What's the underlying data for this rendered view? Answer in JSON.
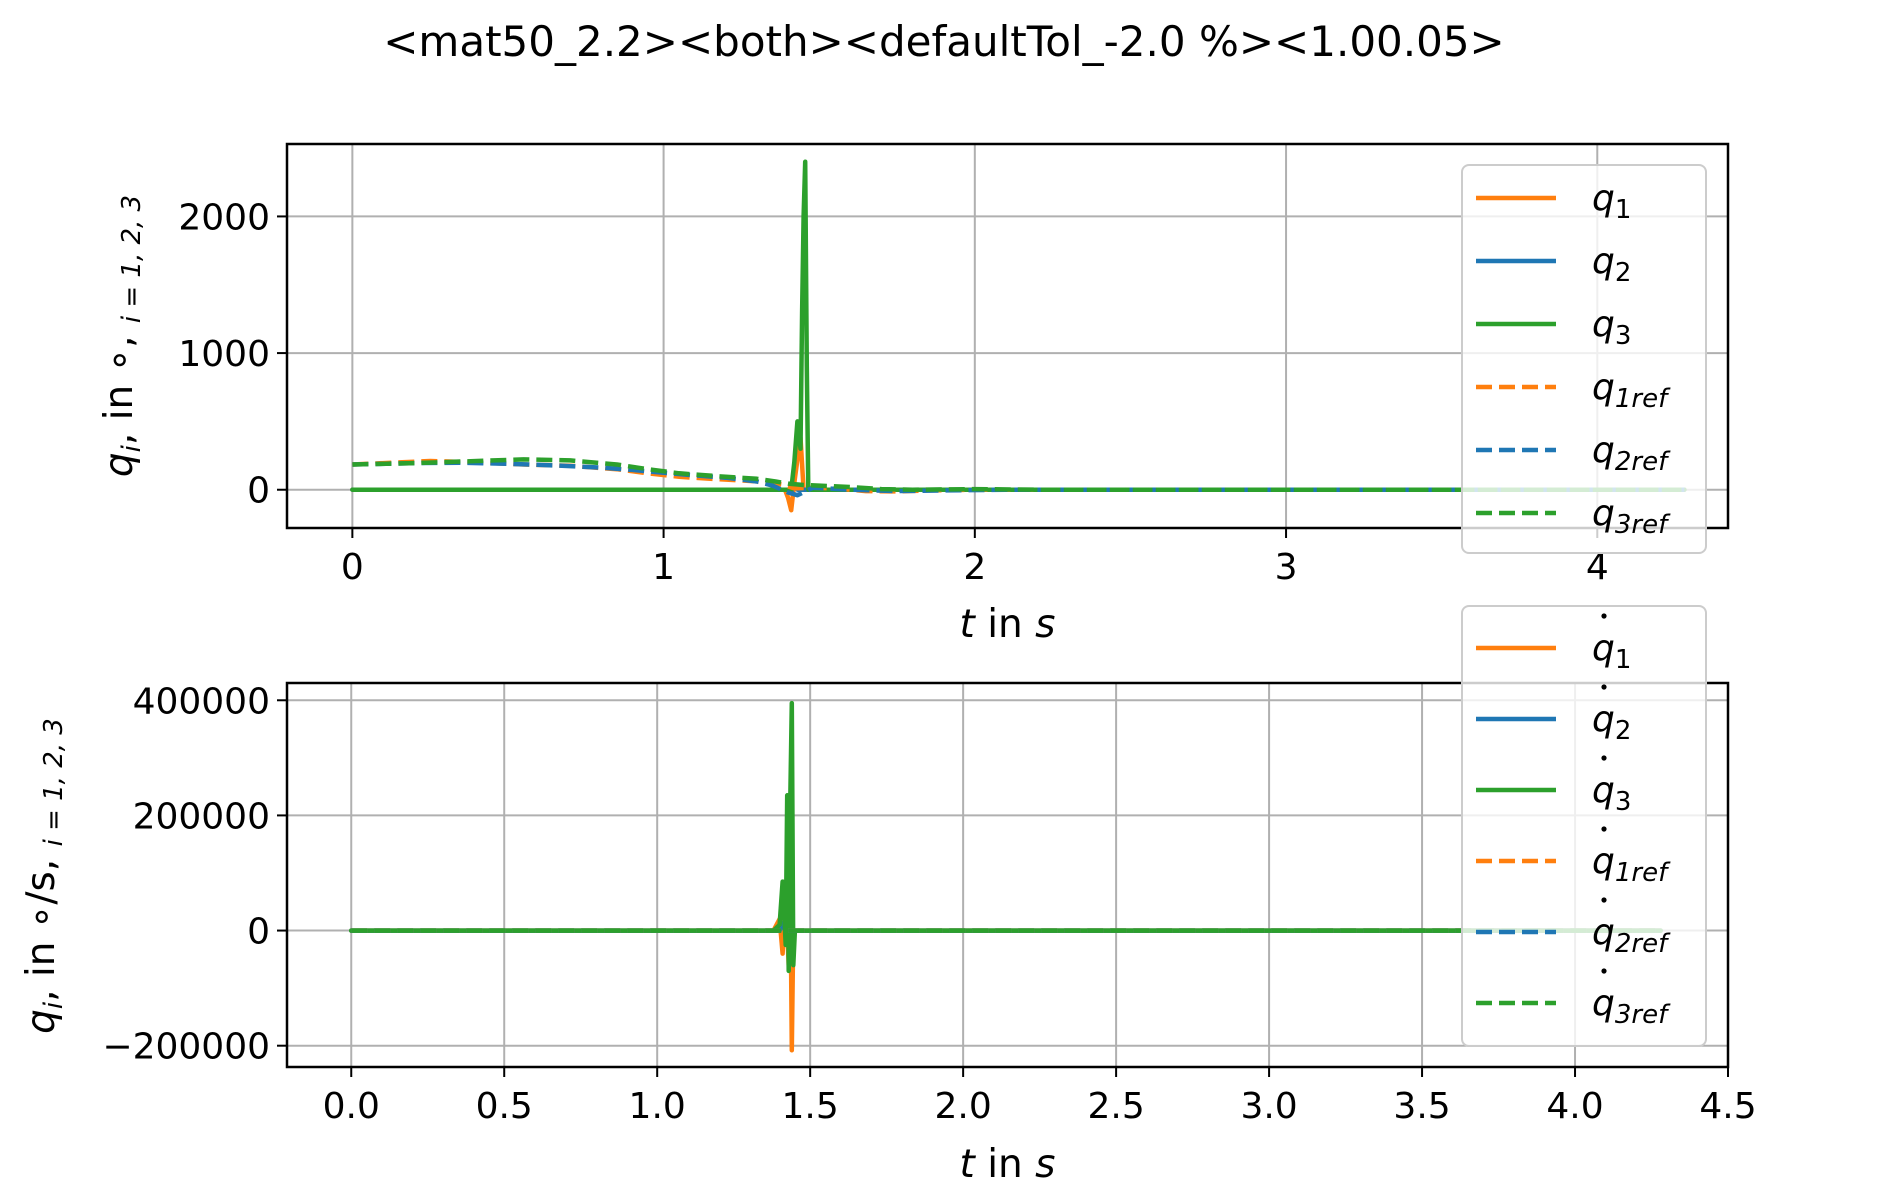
{
  "figure": {
    "title": "<mat50_2.2><both><defaultTol_-2.0 %><1.00.05>"
  },
  "colors": {
    "q1": "#ff7f0e",
    "q2": "#1f77b4",
    "q3": "#2ca02c",
    "grid": "#b0b0b0",
    "legend_border": "#cccccc"
  },
  "chart_data": [
    {
      "type": "line",
      "xlabel": {
        "var": "t",
        "mid": " in ",
        "unit": "s"
      },
      "ylabel": {
        "var": "q",
        "sub": "i",
        "rest": ",  in ∘,  ",
        "idx": "i = 1, 2, 3"
      },
      "xlim": [
        -0.21,
        4.42
      ],
      "ylim": [
        -280,
        2530
      ],
      "xticks": [
        0,
        1,
        2,
        3,
        4
      ],
      "xtick_labels": [
        "0",
        "1",
        "2",
        "3",
        "4"
      ],
      "yticks": [
        0,
        1000,
        2000
      ],
      "ytick_labels": [
        "0",
        "1000",
        "2000"
      ],
      "grid": true,
      "legend_position": "right",
      "series": [
        {
          "name": "q1",
          "var": "q",
          "sub": "1",
          "color_key": "q1",
          "dash": false,
          "points": [
            [
              0,
              0
            ],
            [
              1.39,
              0
            ],
            [
              1.4,
              -60
            ],
            [
              1.41,
              -150
            ],
            [
              1.42,
              50
            ],
            [
              1.43,
              220
            ],
            [
              1.44,
              380
            ],
            [
              1.45,
              0
            ],
            [
              4.28,
              0
            ]
          ]
        },
        {
          "name": "q2",
          "var": "q",
          "sub": "2",
          "color_key": "q2",
          "dash": false,
          "points": [
            [
              0,
              0
            ],
            [
              1.4,
              0
            ],
            [
              1.41,
              -20
            ],
            [
              1.42,
              30
            ],
            [
              1.43,
              0
            ],
            [
              4.28,
              0
            ]
          ]
        },
        {
          "name": "q3",
          "var": "q",
          "sub": "3",
          "color_key": "q3",
          "dash": false,
          "points": [
            [
              0,
              0
            ],
            [
              1.41,
              0
            ],
            [
              1.42,
              200
            ],
            [
              1.43,
              500
            ],
            [
              1.44,
              300
            ],
            [
              1.445,
              1300
            ],
            [
              1.45,
              2000
            ],
            [
              1.455,
              2400
            ],
            [
              1.46,
              900
            ],
            [
              1.465,
              0
            ],
            [
              4.28,
              0
            ]
          ]
        },
        {
          "name": "q1ref",
          "var": "q",
          "sub": "1ref",
          "color_key": "q1",
          "dash": true,
          "points": [
            [
              0,
              185
            ],
            [
              0.15,
              200
            ],
            [
              0.25,
              210
            ],
            [
              0.4,
              200
            ],
            [
              0.55,
              185
            ],
            [
              0.7,
              175
            ],
            [
              0.85,
              150
            ],
            [
              0.95,
              120
            ],
            [
              1.05,
              95
            ],
            [
              1.15,
              80
            ],
            [
              1.25,
              68
            ],
            [
              1.32,
              58
            ],
            [
              1.38,
              40
            ],
            [
              1.42,
              10
            ],
            [
              1.48,
              15
            ],
            [
              1.55,
              10
            ],
            [
              1.65,
              -10
            ],
            [
              1.75,
              -12
            ],
            [
              1.85,
              -5
            ],
            [
              2.0,
              0
            ],
            [
              4.28,
              0
            ]
          ]
        },
        {
          "name": "q2ref",
          "var": "q",
          "sub": "2ref",
          "color_key": "q2",
          "dash": true,
          "points": [
            [
              0,
              185
            ],
            [
              0.2,
              195
            ],
            [
              0.35,
              198
            ],
            [
              0.5,
              190
            ],
            [
              0.65,
              178
            ],
            [
              0.8,
              162
            ],
            [
              0.9,
              145
            ],
            [
              1.0,
              125
            ],
            [
              1.1,
              105
            ],
            [
              1.2,
              88
            ],
            [
              1.3,
              60
            ],
            [
              1.35,
              30
            ],
            [
              1.4,
              -20
            ],
            [
              1.43,
              -40
            ],
            [
              1.48,
              15
            ],
            [
              1.6,
              0
            ],
            [
              1.75,
              -10
            ],
            [
              1.9,
              -5
            ],
            [
              2.1,
              0
            ],
            [
              4.28,
              0
            ]
          ]
        },
        {
          "name": "q3ref",
          "var": "q",
          "sub": "3ref",
          "color_key": "q3",
          "dash": true,
          "points": [
            [
              0,
              185
            ],
            [
              0.2,
              195
            ],
            [
              0.4,
              210
            ],
            [
              0.55,
              222
            ],
            [
              0.7,
              215
            ],
            [
              0.85,
              185
            ],
            [
              0.95,
              150
            ],
            [
              1.05,
              120
            ],
            [
              1.2,
              95
            ],
            [
              1.3,
              80
            ],
            [
              1.36,
              60
            ],
            [
              1.4,
              45
            ],
            [
              1.45,
              35
            ],
            [
              1.5,
              30
            ],
            [
              1.6,
              20
            ],
            [
              1.7,
              5
            ],
            [
              1.8,
              0
            ],
            [
              2.0,
              5
            ],
            [
              2.2,
              0
            ],
            [
              4.28,
              0
            ]
          ]
        }
      ]
    },
    {
      "type": "line",
      "xlabel": {
        "var": "t",
        "mid": " in ",
        "unit": "s"
      },
      "ylabel": {
        "var": "q",
        "sub": "i",
        "rest": ", in ∘/s,  ",
        "idx": "i = 1, 2, 3"
      },
      "xlim": [
        -0.21,
        4.5
      ],
      "ylim": [
        -237000,
        430000
      ],
      "xticks": [
        0,
        0.5,
        1,
        1.5,
        2,
        2.5,
        3,
        3.5,
        4,
        4.5
      ],
      "xtick_labels": [
        "0.0",
        "0.5",
        "1.0",
        "1.5",
        "2.0",
        "2.5",
        "3.0",
        "3.5",
        "4.0",
        "4.5"
      ],
      "yticks": [
        -200000,
        0,
        200000,
        400000
      ],
      "ytick_labels": [
        "−200000",
        "0",
        "200000",
        "400000"
      ],
      "grid": true,
      "legend_position": "right",
      "series": [
        {
          "name": "q̇1",
          "var": "q",
          "dot": true,
          "sub": "1",
          "color_key": "q1",
          "dash": false,
          "points": [
            [
              0,
              0
            ],
            [
              1.38,
              0
            ],
            [
              1.4,
              20000
            ],
            [
              1.41,
              -40000
            ],
            [
              1.42,
              60000
            ],
            [
              1.43,
              -60000
            ],
            [
              1.435,
              100000
            ],
            [
              1.44,
              -208000
            ],
            [
              1.445,
              0
            ],
            [
              4.28,
              0
            ]
          ]
        },
        {
          "name": "q̇2",
          "var": "q",
          "dot": true,
          "sub": "2",
          "color_key": "q2",
          "dash": false,
          "points": [
            [
              0,
              0
            ],
            [
              1.4,
              0
            ],
            [
              1.42,
              20000
            ],
            [
              1.43,
              -10000
            ],
            [
              1.44,
              0
            ],
            [
              4.28,
              0
            ]
          ]
        },
        {
          "name": "q̇3",
          "var": "q",
          "dot": true,
          "sub": "3",
          "color_key": "q3",
          "dash": false,
          "points": [
            [
              0,
              0
            ],
            [
              1.38,
              0
            ],
            [
              1.4,
              10000
            ],
            [
              1.41,
              85000
            ],
            [
              1.42,
              -25000
            ],
            [
              1.425,
              235000
            ],
            [
              1.43,
              -70000
            ],
            [
              1.435,
              230000
            ],
            [
              1.44,
              395000
            ],
            [
              1.445,
              -60000
            ],
            [
              1.45,
              0
            ],
            [
              4.28,
              0
            ]
          ]
        },
        {
          "name": "q̇1ref",
          "var": "q",
          "dot": true,
          "sub": "1ref",
          "color_key": "q1",
          "dash": true,
          "points": [
            [
              0,
              0
            ],
            [
              4.28,
              0
            ]
          ]
        },
        {
          "name": "q̇2ref",
          "var": "q",
          "dot": true,
          "sub": "2ref",
          "color_key": "q2",
          "dash": true,
          "points": [
            [
              0,
              0
            ],
            [
              4.28,
              0
            ]
          ]
        },
        {
          "name": "q̇3ref",
          "var": "q",
          "dot": true,
          "sub": "3ref",
          "color_key": "q3",
          "dash": true,
          "points": [
            [
              0,
              0
            ],
            [
              4.28,
              0
            ]
          ]
        }
      ]
    }
  ]
}
